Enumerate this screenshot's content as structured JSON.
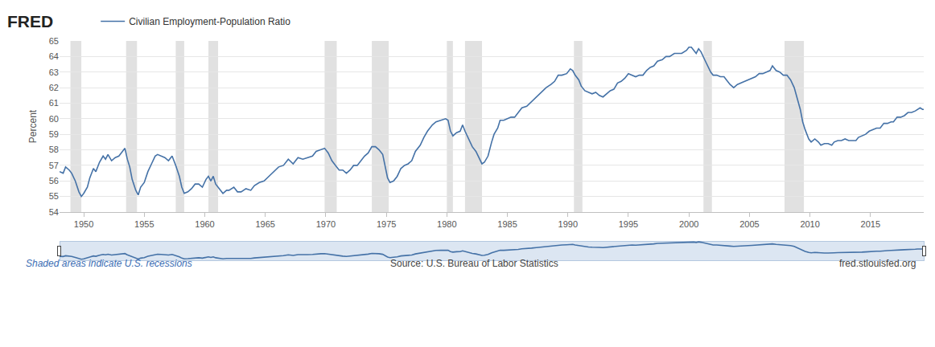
{
  "chart_data": {
    "type": "line",
    "title": "FRED",
    "y_label": "Percent",
    "annotations": [
      "Shaded areas indicate U.S. recessions",
      "Source: U.S. Bureau of Labor Statistics",
      "fred.stlouisfed.org"
    ],
    "xlim": [
      1948.0,
      2019.4
    ],
    "xticks": [
      1950,
      1955,
      1960,
      1965,
      1970,
      1975,
      1980,
      1985,
      1990,
      1995,
      2000,
      2005,
      2010,
      2015
    ],
    "ylim": [
      54,
      65
    ],
    "yticks": [
      54,
      55,
      56,
      57,
      58,
      59,
      60,
      61,
      62,
      63,
      64,
      65
    ],
    "grid": true,
    "legend": "top left",
    "recessions": [
      [
        1948.9,
        1949.8
      ],
      [
        1953.5,
        1954.4
      ],
      [
        1957.6,
        1958.3
      ],
      [
        1960.3,
        1961.1
      ],
      [
        1969.9,
        1970.9
      ],
      [
        1973.8,
        1975.2
      ],
      [
        1980.0,
        1980.5
      ],
      [
        1981.5,
        1982.9
      ],
      [
        1990.5,
        1991.2
      ],
      [
        2001.2,
        2001.9
      ],
      [
        2007.9,
        2009.5
      ]
    ],
    "x": [
      1948.0,
      1948.3,
      1948.5,
      1948.8,
      1949.0,
      1949.3,
      1949.6,
      1949.8,
      1950.0,
      1950.3,
      1950.5,
      1950.8,
      1951.0,
      1951.3,
      1951.6,
      1951.8,
      1952.0,
      1952.3,
      1952.6,
      1952.9,
      1953.2,
      1953.4,
      1953.6,
      1953.8,
      1954.0,
      1954.3,
      1954.5,
      1954.7,
      1955.0,
      1955.3,
      1955.6,
      1955.9,
      1956.1,
      1956.4,
      1956.7,
      1957.0,
      1957.3,
      1957.6,
      1957.9,
      1958.1,
      1958.3,
      1958.6,
      1958.9,
      1959.2,
      1959.5,
      1959.8,
      1960.1,
      1960.3,
      1960.5,
      1960.7,
      1960.9,
      1961.2,
      1961.5,
      1961.8,
      1962.0,
      1962.4,
      1962.7,
      1963.0,
      1963.4,
      1963.8,
      1964.1,
      1964.5,
      1964.9,
      1965.3,
      1965.7,
      1966.1,
      1966.5,
      1966.9,
      1967.3,
      1967.7,
      1968.1,
      1968.5,
      1968.9,
      1969.2,
      1969.6,
      1969.9,
      1970.2,
      1970.5,
      1970.8,
      1971.1,
      1971.4,
      1971.7,
      1972.0,
      1972.3,
      1972.6,
      1972.9,
      1973.2,
      1973.5,
      1973.8,
      1974.1,
      1974.4,
      1974.7,
      1974.9,
      1975.1,
      1975.3,
      1975.6,
      1975.9,
      1976.2,
      1976.5,
      1976.8,
      1977.1,
      1977.4,
      1977.8,
      1978.1,
      1978.4,
      1978.8,
      1979.1,
      1979.5,
      1979.9,
      1980.1,
      1980.3,
      1980.5,
      1980.8,
      1981.1,
      1981.3,
      1981.5,
      1981.8,
      1982.1,
      1982.4,
      1982.7,
      1982.9,
      1983.1,
      1983.4,
      1983.7,
      1983.9,
      1984.2,
      1984.4,
      1984.7,
      1985.0,
      1985.3,
      1985.6,
      1985.9,
      1986.2,
      1986.6,
      1987.0,
      1987.4,
      1987.8,
      1988.2,
      1988.6,
      1988.9,
      1989.2,
      1989.5,
      1989.9,
      1990.2,
      1990.4,
      1990.6,
      1990.9,
      1991.1,
      1991.4,
      1991.7,
      1992.0,
      1992.3,
      1992.6,
      1992.9,
      1993.2,
      1993.5,
      1993.8,
      1994.1,
      1994.4,
      1994.7,
      1995.0,
      1995.3,
      1995.6,
      1995.9,
      1996.2,
      1996.5,
      1996.8,
      1997.1,
      1997.4,
      1997.8,
      1998.1,
      1998.4,
      1998.8,
      1999.1,
      1999.4,
      1999.8,
      2000.0,
      2000.2,
      2000.4,
      2000.6,
      2000.8,
      2001.0,
      2001.3,
      2001.6,
      2001.8,
      2002.0,
      2002.3,
      2002.6,
      2002.9,
      2003.1,
      2003.4,
      2003.7,
      2004.0,
      2004.3,
      2004.6,
      2004.9,
      2005.2,
      2005.5,
      2005.8,
      2006.1,
      2006.4,
      2006.7,
      2006.9,
      2007.2,
      2007.5,
      2007.8,
      2008.1,
      2008.4,
      2008.7,
      2008.9,
      2009.2,
      2009.4,
      2009.6,
      2009.9,
      2010.1,
      2010.4,
      2010.7,
      2010.9,
      2011.2,
      2011.5,
      2011.8,
      2012.0,
      2012.3,
      2012.6,
      2012.9,
      2013.2,
      2013.5,
      2013.8,
      2014.0,
      2014.3,
      2014.6,
      2014.9,
      2015.2,
      2015.5,
      2015.8,
      2016.1,
      2016.4,
      2016.7,
      2016.9,
      2017.2,
      2017.5,
      2017.8,
      2018.1,
      2018.4,
      2018.7,
      2018.9,
      2019.1,
      2019.3,
      2019.4
    ],
    "series": [
      {
        "name": "Civilian Employment-Population Ratio",
        "color": "#4572a7",
        "values": [
          56.6,
          56.5,
          56.9,
          56.7,
          56.5,
          56.0,
          55.3,
          55.0,
          55.2,
          55.6,
          56.2,
          56.8,
          56.6,
          57.2,
          57.6,
          57.4,
          57.7,
          57.3,
          57.5,
          57.6,
          57.9,
          58.1,
          57.4,
          56.9,
          56.1,
          55.4,
          55.1,
          55.6,
          55.9,
          56.6,
          57.1,
          57.6,
          57.7,
          57.6,
          57.5,
          57.3,
          57.6,
          57.0,
          56.3,
          55.6,
          55.2,
          55.3,
          55.5,
          55.8,
          55.8,
          55.6,
          56.1,
          56.3,
          56.0,
          56.3,
          55.8,
          55.5,
          55.2,
          55.4,
          55.4,
          55.6,
          55.3,
          55.3,
          55.5,
          55.4,
          55.7,
          55.9,
          56.0,
          56.3,
          56.6,
          56.9,
          57.0,
          57.4,
          57.1,
          57.5,
          57.4,
          57.5,
          57.6,
          57.9,
          58.0,
          58.1,
          57.8,
          57.3,
          57.0,
          56.7,
          56.7,
          56.5,
          56.7,
          57.0,
          57.0,
          57.3,
          57.6,
          57.8,
          58.2,
          58.2,
          58.0,
          57.7,
          57.0,
          56.2,
          55.9,
          56.0,
          56.3,
          56.8,
          57.0,
          57.1,
          57.3,
          57.9,
          58.3,
          58.8,
          59.2,
          59.6,
          59.8,
          59.9,
          60.0,
          59.9,
          59.2,
          58.9,
          59.1,
          59.2,
          59.6,
          59.2,
          58.7,
          58.2,
          57.9,
          57.4,
          57.1,
          57.2,
          57.6,
          58.5,
          59.0,
          59.4,
          59.9,
          59.9,
          60.0,
          60.1,
          60.1,
          60.4,
          60.7,
          60.8,
          61.1,
          61.4,
          61.7,
          62.0,
          62.2,
          62.4,
          62.8,
          62.8,
          62.9,
          63.2,
          63.1,
          62.8,
          62.5,
          62.1,
          61.8,
          61.7,
          61.6,
          61.7,
          61.5,
          61.4,
          61.6,
          61.8,
          61.9,
          62.3,
          62.4,
          62.6,
          62.9,
          62.8,
          62.7,
          62.8,
          62.8,
          63.1,
          63.3,
          63.4,
          63.7,
          63.8,
          64.0,
          64.0,
          64.2,
          64.2,
          64.2,
          64.4,
          64.6,
          64.6,
          64.4,
          64.2,
          64.5,
          64.3,
          63.8,
          63.3,
          63.0,
          62.8,
          62.8,
          62.7,
          62.7,
          62.5,
          62.2,
          62.0,
          62.2,
          62.3,
          62.4,
          62.5,
          62.6,
          62.7,
          62.9,
          62.9,
          63.0,
          63.1,
          63.4,
          63.1,
          63.0,
          62.8,
          62.8,
          62.5,
          62.0,
          61.4,
          60.6,
          59.8,
          59.3,
          58.7,
          58.5,
          58.7,
          58.5,
          58.3,
          58.4,
          58.4,
          58.3,
          58.5,
          58.6,
          58.6,
          58.7,
          58.6,
          58.6,
          58.6,
          58.8,
          58.9,
          59.0,
          59.2,
          59.3,
          59.4,
          59.4,
          59.7,
          59.7,
          59.8,
          59.8,
          60.1,
          60.1,
          60.2,
          60.4,
          60.4,
          60.5,
          60.6,
          60.7,
          60.6,
          60.6
        ]
      }
    ]
  }
}
